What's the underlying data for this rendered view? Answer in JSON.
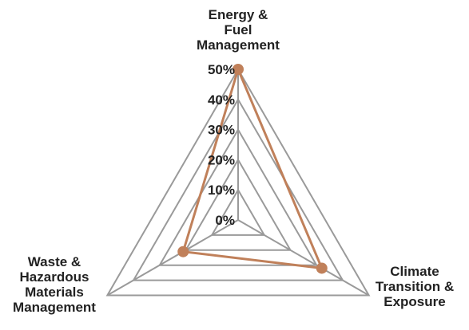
{
  "chart_data": {
    "type": "radar",
    "title": "",
    "categories": [
      [
        "Energy &",
        "Fuel",
        "Management"
      ],
      [
        "Climate",
        "Transition &",
        "Exposure"
      ],
      [
        "Waste &",
        "Hazardous",
        "Materials",
        "Management"
      ]
    ],
    "rlim": [
      0,
      50
    ],
    "ticks": [
      "0%",
      "10%",
      "20%",
      "30%",
      "40%",
      "50%"
    ],
    "grid": true,
    "legend": "none",
    "series": [
      {
        "values": [
          50,
          32,
          21
        ],
        "color": "#c0805a"
      }
    ]
  }
}
